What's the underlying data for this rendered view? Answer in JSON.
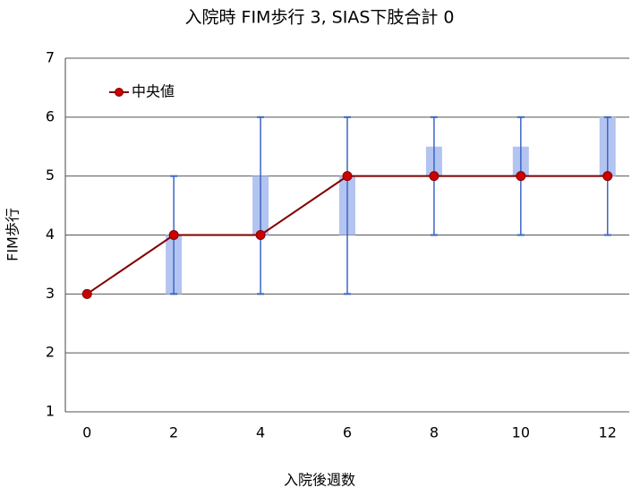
{
  "chart_data": {
    "type": "line",
    "title": "入院時 FIM歩行 3,  SIAS下肢合計 0",
    "xlabel": "入院後週数",
    "ylabel": "FIM歩行",
    "x": [
      0,
      2,
      4,
      6,
      8,
      10,
      12
    ],
    "series": [
      {
        "name": "中央値",
        "color": "#800000",
        "marker_color": "#cc0000",
        "values": [
          3,
          4,
          4,
          5,
          5,
          5,
          5
        ]
      }
    ],
    "whisker_low": [
      3,
      3,
      3,
      3,
      4,
      4,
      4
    ],
    "whisker_high": [
      3,
      5,
      6,
      6,
      6,
      6,
      6
    ],
    "whisker_color": "#3a66c4",
    "box_low": [
      3,
      3,
      4,
      4,
      5,
      5,
      5
    ],
    "box_high": [
      3,
      4,
      5,
      5,
      5.5,
      5.5,
      6
    ],
    "box_color": "#b4c4f0",
    "xlim": [
      -0.5,
      12.5
    ],
    "xticks": [
      0,
      2,
      4,
      6,
      8,
      10,
      12
    ],
    "ylim": [
      1,
      7
    ],
    "yticks": [
      1,
      2,
      3,
      4,
      5,
      6,
      7
    ],
    "grid": true,
    "legend": "upper left"
  }
}
